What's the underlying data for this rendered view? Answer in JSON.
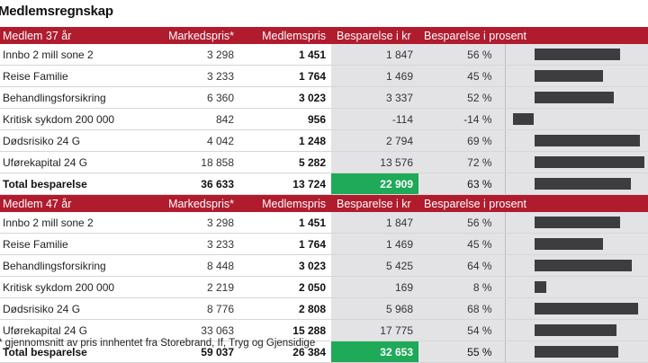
{
  "title": "Medlemsregnskap",
  "sections": [
    {
      "header": {
        "label": "Medlem 37 år",
        "market": "Markedspris*",
        "member": "Medlemspris",
        "saving_kr": "Besparelse i kr",
        "saving_pct": "Besparelse i prosent"
      },
      "rows": [
        {
          "label": "Innbo 2 mill sone 2",
          "market": "3 298",
          "member": "1 451",
          "saving_kr": "1 847",
          "saving_pct": "56 %",
          "pct_value": 56
        },
        {
          "label": "Reise Familie",
          "market": "3 233",
          "member": "1 764",
          "saving_kr": "1 469",
          "saving_pct": "45 %",
          "pct_value": 45
        },
        {
          "label": "Behandlingsforsikring",
          "market": "6 360",
          "member": "3 023",
          "saving_kr": "3 337",
          "saving_pct": "52 %",
          "pct_value": 52
        },
        {
          "label": "Kritisk sykdom 200 000",
          "market": "842",
          "member": "956",
          "saving_kr": "-114",
          "saving_pct": "-14 %",
          "pct_value": -14
        },
        {
          "label": "Dødsrisiko 24 G",
          "market": "4 042",
          "member": "1 248",
          "saving_kr": "2 794",
          "saving_pct": "69 %",
          "pct_value": 69
        },
        {
          "label": "Uførekapital 24 G",
          "market": "18 858",
          "member": "5 282",
          "saving_kr": "13 576",
          "saving_pct": "72 %",
          "pct_value": 72
        }
      ],
      "total": {
        "label": "Total besparelse",
        "market": "36 633",
        "member": "13 724",
        "saving_kr": "22 909",
        "saving_pct": "63 %",
        "pct_value": 63
      }
    },
    {
      "header": {
        "label": "Medlem 47 år",
        "market": "Markedspris*",
        "member": "Medlemspris",
        "saving_kr": "Besparelse i kr",
        "saving_pct": "Besparelse i prosent"
      },
      "rows": [
        {
          "label": "Innbo 2 mill sone 2",
          "market": "3 298",
          "member": "1 451",
          "saving_kr": "1 847",
          "saving_pct": "56 %",
          "pct_value": 56
        },
        {
          "label": "Reise Familie",
          "market": "3 233",
          "member": "1 764",
          "saving_kr": "1 469",
          "saving_pct": "45 %",
          "pct_value": 45
        },
        {
          "label": "Behandlingsforsikring",
          "market": "8 448",
          "member": "3 023",
          "saving_kr": "5 425",
          "saving_pct": "64 %",
          "pct_value": 64
        },
        {
          "label": "Kritisk sykdom 200 000",
          "market": "2 219",
          "member": "2 050",
          "saving_kr": "169",
          "saving_pct": "8 %",
          "pct_value": 8
        },
        {
          "label": "Dødsrisiko 24 G",
          "market": "8 776",
          "member": "2 808",
          "saving_kr": "5 968",
          "saving_pct": "68 %",
          "pct_value": 68
        },
        {
          "label": "Uførekapital 24 G",
          "market": "33 063",
          "member": "15 288",
          "saving_kr": "17 775",
          "saving_pct": "54 %",
          "pct_value": 54
        }
      ],
      "total": {
        "label": "Total besparelse",
        "market": "59 037",
        "member": "26 384",
        "saving_kr": "32 653",
        "saving_pct": "55 %",
        "pct_value": 55
      }
    }
  ],
  "source": "* gjennomsnitt av pris innhentet fra Storebrand, If, Tryg og Gjensidige",
  "colors": {
    "header": "#b01c2e",
    "total_saving": "#1eaa58",
    "bar": "#3d3d3f",
    "shaded": "#e3e3e6"
  }
}
